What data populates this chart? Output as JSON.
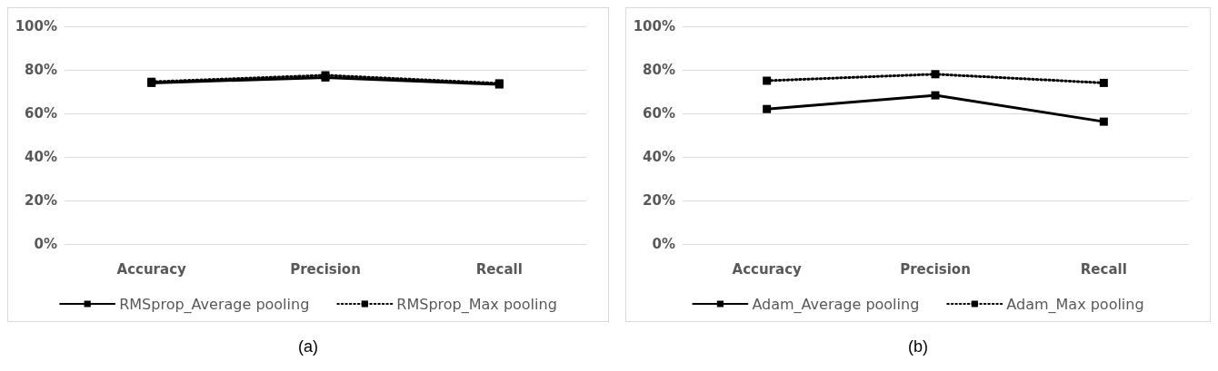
{
  "chart_data": [
    {
      "type": "line",
      "categories": [
        "Accuracy",
        "Precision",
        "Recall"
      ],
      "series": [
        {
          "name": "RMSprop_Average pooling",
          "color": "#000000",
          "line_style": "solid",
          "values": [
            74,
            76.5,
            73.3
          ]
        },
        {
          "name": "RMSprop_Max pooling",
          "color": "#000000",
          "line_style": "dotted",
          "values": [
            74.5,
            77.5,
            73.8
          ]
        }
      ],
      "ylim": [
        0,
        100
      ],
      "yticks": [
        {
          "value": 0,
          "label": "0%"
        },
        {
          "value": 20,
          "label": "20%"
        },
        {
          "value": 40,
          "label": "40%"
        },
        {
          "value": 60,
          "label": "60%"
        },
        {
          "value": 80,
          "label": "80%"
        },
        {
          "value": 100,
          "label": "100%"
        }
      ],
      "grid": "y",
      "legend": "bottom",
      "marker": "square",
      "annotations": [
        "(a)"
      ]
    },
    {
      "type": "line",
      "categories": [
        "Accuracy",
        "Precision",
        "Recall"
      ],
      "series": [
        {
          "name": "Adam_Average pooling",
          "color": "#000000",
          "line_style": "solid",
          "values": [
            62,
            68.3,
            56.2
          ]
        },
        {
          "name": "Adam_Max pooling",
          "color": "#000000",
          "line_style": "dotted",
          "values": [
            75,
            78,
            74
          ]
        }
      ],
      "ylim": [
        0,
        100
      ],
      "yticks": [
        {
          "value": 0,
          "label": "0%"
        },
        {
          "value": 20,
          "label": "20%"
        },
        {
          "value": 40,
          "label": "40%"
        },
        {
          "value": 60,
          "label": "60%"
        },
        {
          "value": 80,
          "label": "80%"
        },
        {
          "value": 100,
          "label": "100%"
        }
      ],
      "grid": "y",
      "legend": "bottom",
      "marker": "square",
      "annotations": [
        "(b)"
      ]
    }
  ]
}
